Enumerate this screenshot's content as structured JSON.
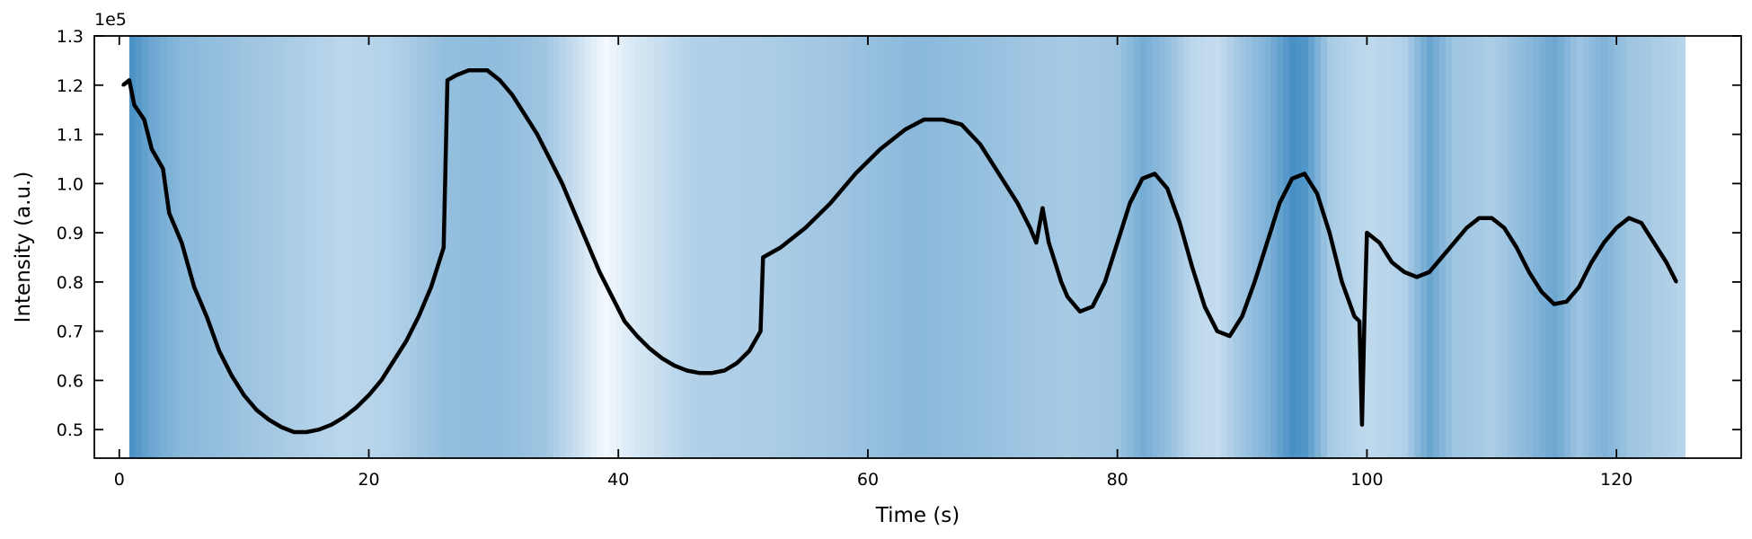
{
  "chart_data": {
    "type": "line",
    "title": "",
    "xlabel": "Time (s)",
    "ylabel": "Intensity (a.u.)",
    "y_scale_note": "1e5",
    "xlim": [
      -2,
      130
    ],
    "ylim": [
      0.442,
      1.3
    ],
    "x_ticks": [
      0,
      20,
      40,
      60,
      80,
      100,
      120
    ],
    "x_tick_labels": [
      "0",
      "20",
      "40",
      "60",
      "80",
      "100",
      "120"
    ],
    "y_ticks": [
      0.5,
      0.6,
      0.7,
      0.8,
      0.9,
      1.0,
      1.1,
      1.2,
      1.3
    ],
    "y_tick_labels": [
      "0.5",
      "0.6",
      "0.7",
      "0.8",
      "0.9",
      "1.0",
      "1.1",
      "1.2",
      "1.3"
    ],
    "grid": false,
    "legend": "none",
    "line_color": "#000000",
    "background_band": {
      "x_start": 0.8,
      "x_end": 125.5,
      "colormap": "Blues",
      "level_points": [
        [
          0.8,
          0.9
        ],
        [
          2.5,
          0.7
        ],
        [
          5,
          0.55
        ],
        [
          12,
          0.42
        ],
        [
          18,
          0.3
        ],
        [
          22,
          0.35
        ],
        [
          26,
          0.5
        ],
        [
          30,
          0.52
        ],
        [
          34,
          0.45
        ],
        [
          37,
          0.2
        ],
        [
          39,
          0.02
        ],
        [
          41,
          0.15
        ],
        [
          46,
          0.35
        ],
        [
          52,
          0.38
        ],
        [
          58,
          0.45
        ],
        [
          64,
          0.55
        ],
        [
          70,
          0.48
        ],
        [
          76,
          0.4
        ],
        [
          80,
          0.45
        ],
        [
          82,
          0.65
        ],
        [
          84,
          0.5
        ],
        [
          86,
          0.3
        ],
        [
          88,
          0.25
        ],
        [
          90,
          0.45
        ],
        [
          92,
          0.6
        ],
        [
          94,
          0.88
        ],
        [
          95,
          0.85
        ],
        [
          97,
          0.4
        ],
        [
          100,
          0.28
        ],
        [
          103,
          0.35
        ],
        [
          105,
          0.72
        ],
        [
          107,
          0.45
        ],
        [
          110,
          0.38
        ],
        [
          113,
          0.55
        ],
        [
          115,
          0.7
        ],
        [
          117,
          0.45
        ],
        [
          119,
          0.6
        ],
        [
          121,
          0.45
        ],
        [
          125.5,
          0.32
        ]
      ]
    },
    "series": [
      {
        "x": [
          0.3,
          0.8,
          1.2,
          2.0,
          2.6,
          3.5,
          4.0,
          5.0,
          6.0,
          7.0,
          8.0,
          9.0,
          10.0,
          11.0,
          12.0,
          13.0,
          14.0,
          15.0,
          16.0,
          17.0,
          18.0,
          19.0,
          20.0,
          21.0,
          22.0,
          23.0,
          24.0,
          25.0,
          26.0,
          26.3,
          27.0,
          28.0,
          29.0,
          29.5,
          30.5,
          31.5,
          32.5,
          33.5,
          34.5,
          35.5,
          36.5,
          37.5,
          38.5,
          39.5,
          40.5,
          41.5,
          42.5,
          43.5,
          44.5,
          45.5,
          46.5,
          47.5,
          48.5,
          49.5,
          50.5,
          51.4,
          51.6,
          53.0,
          55.0,
          57.0,
          59.0,
          61.0,
          63.0,
          64.5,
          66.0,
          67.5,
          69.0,
          70.0,
          71.0,
          72.0,
          73.0,
          73.5,
          74.0,
          74.5,
          75.0,
          75.5,
          76.0,
          77.0,
          78.0,
          79.0,
          80.0,
          81.0,
          82.0,
          83.0,
          84.0,
          85.0,
          86.0,
          87.0,
          88.0,
          89.0,
          90.0,
          91.0,
          92.0,
          93.0,
          94.0,
          95.0,
          96.0,
          97.0,
          98.0,
          99.0,
          99.4,
          99.6,
          99.8,
          100.0,
          101.0,
          102.0,
          103.0,
          104.0,
          105.0,
          106.0,
          107.0,
          108.0,
          109.0,
          110.0,
          111.0,
          112.0,
          113.0,
          114.0,
          115.0,
          116.0,
          117.0,
          118.0,
          119.0,
          120.0,
          121.0,
          122.0,
          123.0,
          124.0,
          124.8
        ],
        "y": [
          1.2,
          1.21,
          1.16,
          1.13,
          1.07,
          1.03,
          0.94,
          0.88,
          0.79,
          0.73,
          0.66,
          0.61,
          0.57,
          0.54,
          0.52,
          0.505,
          0.495,
          0.495,
          0.5,
          0.51,
          0.525,
          0.545,
          0.57,
          0.6,
          0.64,
          0.68,
          0.73,
          0.79,
          0.87,
          1.21,
          1.22,
          1.23,
          1.23,
          1.23,
          1.21,
          1.18,
          1.14,
          1.1,
          1.05,
          1.0,
          0.94,
          0.88,
          0.82,
          0.77,
          0.72,
          0.69,
          0.665,
          0.645,
          0.63,
          0.62,
          0.615,
          0.615,
          0.62,
          0.635,
          0.66,
          0.7,
          0.85,
          0.87,
          0.91,
          0.96,
          1.02,
          1.07,
          1.11,
          1.13,
          1.13,
          1.12,
          1.08,
          1.04,
          1.0,
          0.96,
          0.91,
          0.88,
          0.95,
          0.88,
          0.84,
          0.8,
          0.77,
          0.74,
          0.75,
          0.8,
          0.88,
          0.96,
          1.01,
          1.02,
          0.99,
          0.92,
          0.83,
          0.75,
          0.7,
          0.69,
          0.73,
          0.8,
          0.88,
          0.96,
          1.01,
          1.02,
          0.98,
          0.9,
          0.8,
          0.73,
          0.72,
          0.51,
          0.72,
          0.9,
          0.88,
          0.84,
          0.82,
          0.81,
          0.82,
          0.85,
          0.88,
          0.91,
          0.93,
          0.93,
          0.91,
          0.87,
          0.82,
          0.78,
          0.755,
          0.76,
          0.79,
          0.84,
          0.88,
          0.91,
          0.93,
          0.92,
          0.88,
          0.84,
          0.8
        ]
      }
    ]
  }
}
